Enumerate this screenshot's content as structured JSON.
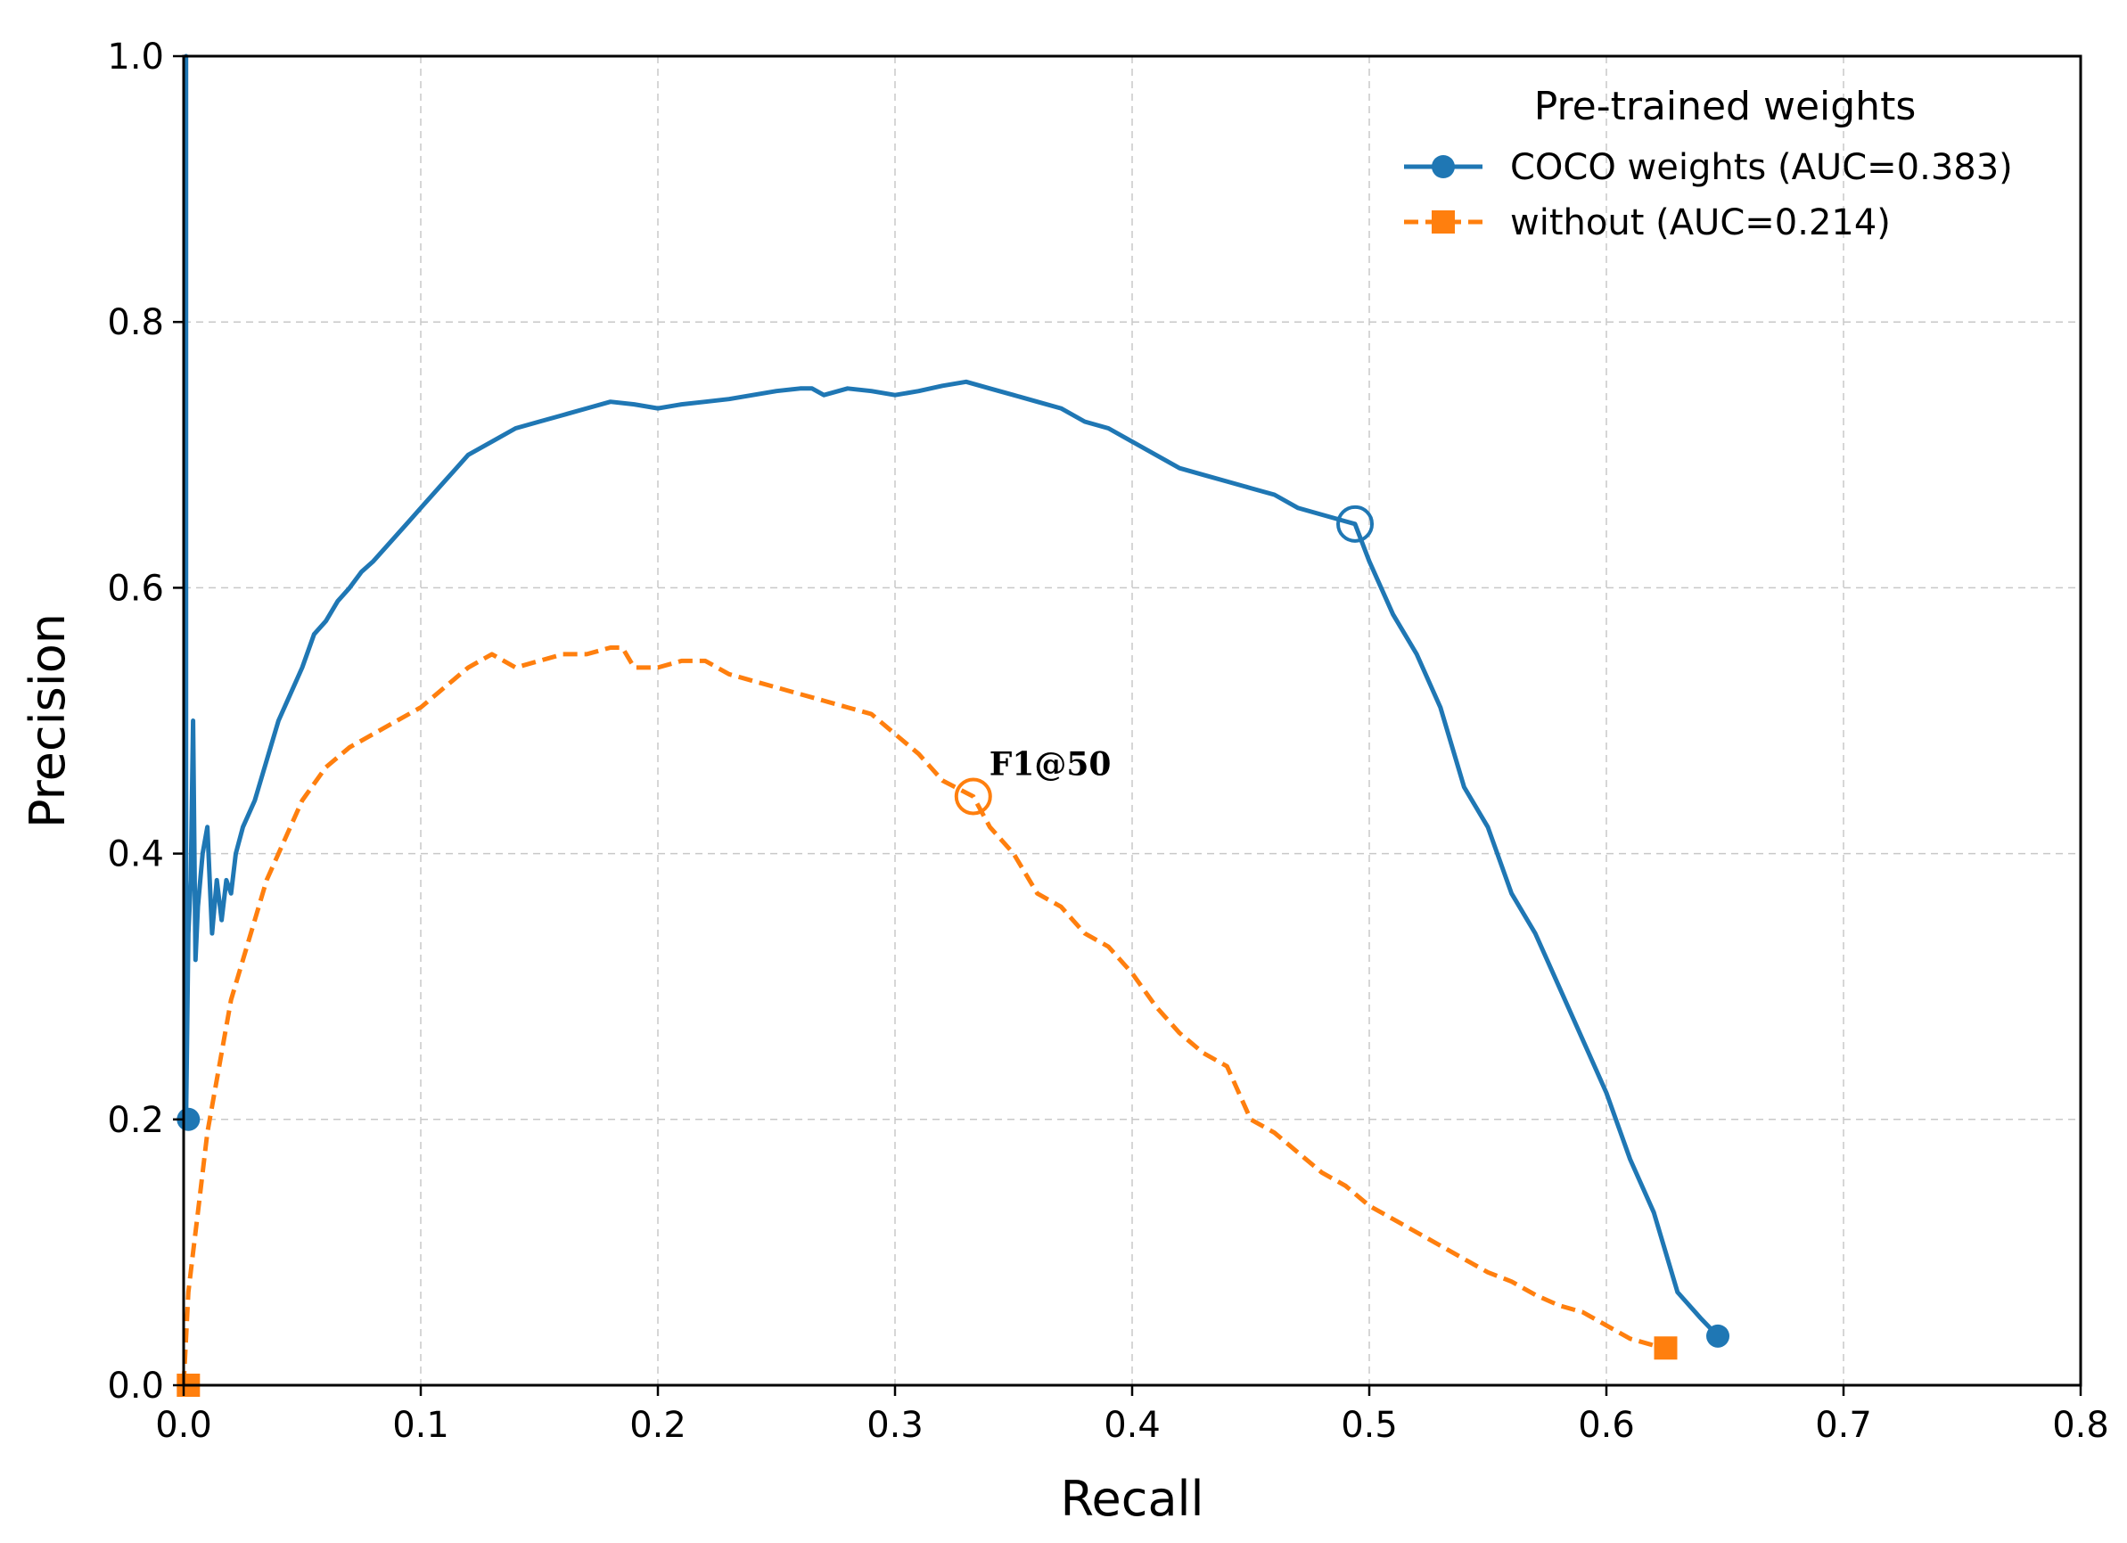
{
  "chart_data": {
    "type": "line",
    "xlabel": "Recall",
    "ylabel": "Precision",
    "xlim": [
      0.0,
      0.8
    ],
    "ylim": [
      0.0,
      1.0
    ],
    "grid": true,
    "x_ticks": [
      0.0,
      0.1,
      0.2,
      0.3,
      0.4,
      0.5,
      0.6,
      0.7,
      0.8
    ],
    "x_tick_labels": [
      "0.0",
      "0.1",
      "0.2",
      "0.3",
      "0.4",
      "0.5",
      "0.6",
      "0.7",
      "0.8"
    ],
    "y_ticks": [
      0.0,
      0.2,
      0.4,
      0.6,
      0.8,
      1.0
    ],
    "y_tick_labels": [
      "0.0",
      "0.2",
      "0.4",
      "0.6",
      "0.8",
      "1.0"
    ],
    "legend": {
      "title": "Pre-trained weights",
      "position": "top-right"
    },
    "annotation": {
      "text": "F1@50"
    },
    "series": [
      {
        "name": "COCO weights (AUC=0.383)",
        "color": "#1f77b4",
        "line_style": "solid",
        "marker": "circle",
        "start_marker": [
          0.002,
          0.2
        ],
        "end_marker": [
          0.647,
          0.037
        ],
        "f1_marker": [
          0.494,
          0.648
        ],
        "x": [
          0.001,
          0.001,
          0.002,
          0.003,
          0.004,
          0.005,
          0.006,
          0.008,
          0.01,
          0.012,
          0.014,
          0.016,
          0.018,
          0.02,
          0.022,
          0.025,
          0.03,
          0.035,
          0.04,
          0.045,
          0.05,
          0.055,
          0.06,
          0.065,
          0.07,
          0.075,
          0.08,
          0.085,
          0.09,
          0.095,
          0.1,
          0.11,
          0.12,
          0.13,
          0.14,
          0.15,
          0.16,
          0.17,
          0.18,
          0.19,
          0.2,
          0.21,
          0.22,
          0.23,
          0.24,
          0.25,
          0.26,
          0.265,
          0.27,
          0.28,
          0.29,
          0.3,
          0.31,
          0.32,
          0.33,
          0.34,
          0.35,
          0.36,
          0.37,
          0.38,
          0.39,
          0.4,
          0.41,
          0.42,
          0.43,
          0.44,
          0.45,
          0.46,
          0.47,
          0.48,
          0.49,
          0.494,
          0.5,
          0.51,
          0.52,
          0.53,
          0.54,
          0.55,
          0.56,
          0.57,
          0.575,
          0.58,
          0.59,
          0.6,
          0.61,
          0.62,
          0.625,
          0.63,
          0.64,
          0.647
        ],
        "y": [
          1.0,
          0.2,
          0.34,
          0.38,
          0.5,
          0.32,
          0.36,
          0.4,
          0.42,
          0.34,
          0.38,
          0.35,
          0.38,
          0.37,
          0.4,
          0.42,
          0.44,
          0.47,
          0.5,
          0.52,
          0.54,
          0.565,
          0.575,
          0.59,
          0.6,
          0.612,
          0.62,
          0.63,
          0.64,
          0.65,
          0.66,
          0.68,
          0.7,
          0.71,
          0.72,
          0.725,
          0.73,
          0.735,
          0.74,
          0.738,
          0.735,
          0.738,
          0.74,
          0.742,
          0.745,
          0.748,
          0.75,
          0.75,
          0.745,
          0.75,
          0.748,
          0.745,
          0.748,
          0.752,
          0.755,
          0.75,
          0.745,
          0.74,
          0.735,
          0.725,
          0.72,
          0.71,
          0.7,
          0.69,
          0.685,
          0.68,
          0.675,
          0.67,
          0.66,
          0.655,
          0.65,
          0.648,
          0.62,
          0.58,
          0.55,
          0.51,
          0.45,
          0.42,
          0.37,
          0.34,
          0.32,
          0.3,
          0.26,
          0.22,
          0.17,
          0.13,
          0.1,
          0.07,
          0.05,
          0.037
        ]
      },
      {
        "name": "without (AUC=0.214)",
        "color": "#ff7f0e",
        "line_style": "dashed",
        "marker": "square",
        "start_marker": [
          0.002,
          0.0
        ],
        "end_marker": [
          0.625,
          0.028
        ],
        "f1_marker": [
          0.333,
          0.443
        ],
        "x": [
          0.0,
          0.002,
          0.004,
          0.006,
          0.008,
          0.01,
          0.015,
          0.02,
          0.025,
          0.03,
          0.035,
          0.04,
          0.045,
          0.05,
          0.06,
          0.07,
          0.08,
          0.09,
          0.1,
          0.11,
          0.12,
          0.13,
          0.14,
          0.15,
          0.16,
          0.17,
          0.18,
          0.185,
          0.19,
          0.2,
          0.21,
          0.22,
          0.23,
          0.24,
          0.25,
          0.26,
          0.27,
          0.28,
          0.29,
          0.3,
          0.31,
          0.32,
          0.333,
          0.34,
          0.35,
          0.36,
          0.37,
          0.38,
          0.39,
          0.4,
          0.41,
          0.42,
          0.43,
          0.44,
          0.45,
          0.46,
          0.47,
          0.48,
          0.49,
          0.5,
          0.51,
          0.52,
          0.53,
          0.54,
          0.55,
          0.56,
          0.57,
          0.58,
          0.59,
          0.6,
          0.61,
          0.62,
          0.625
        ],
        "y": [
          0.0,
          0.07,
          0.1,
          0.13,
          0.16,
          0.19,
          0.24,
          0.29,
          0.32,
          0.35,
          0.38,
          0.4,
          0.42,
          0.44,
          0.465,
          0.48,
          0.49,
          0.5,
          0.51,
          0.525,
          0.54,
          0.55,
          0.54,
          0.545,
          0.55,
          0.55,
          0.555,
          0.555,
          0.54,
          0.54,
          0.545,
          0.545,
          0.535,
          0.53,
          0.525,
          0.52,
          0.515,
          0.51,
          0.505,
          0.49,
          0.475,
          0.455,
          0.443,
          0.42,
          0.4,
          0.37,
          0.36,
          0.34,
          0.33,
          0.31,
          0.285,
          0.265,
          0.25,
          0.24,
          0.2,
          0.19,
          0.175,
          0.16,
          0.15,
          0.135,
          0.125,
          0.115,
          0.105,
          0.095,
          0.085,
          0.078,
          0.068,
          0.06,
          0.055,
          0.045,
          0.035,
          0.03,
          0.028
        ]
      }
    ]
  }
}
